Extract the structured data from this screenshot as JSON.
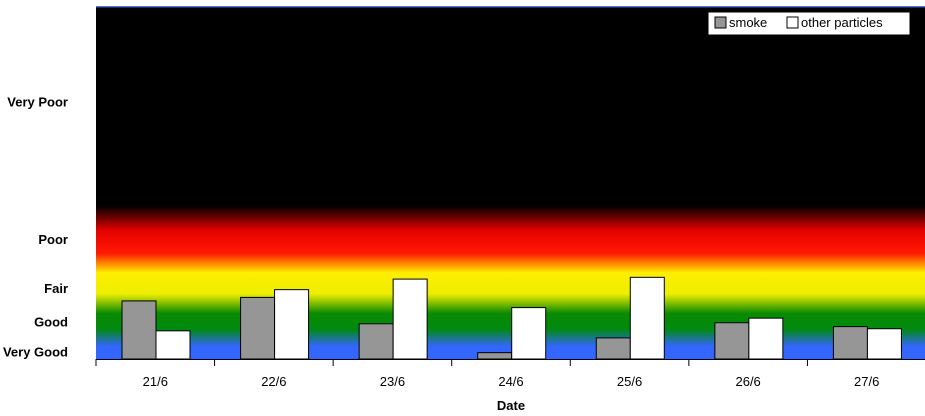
{
  "chart_data": {
    "type": "bar",
    "xlabel": "Date",
    "categories": [
      "21/6",
      "22/6",
      "23/6",
      "24/6",
      "25/6",
      "26/6",
      "27/6"
    ],
    "y_levels": [
      {
        "label": "Very Poor",
        "value": 7.3
      },
      {
        "label": "Poor",
        "value": 3.4
      },
      {
        "label": "Fair",
        "value": 2.0
      },
      {
        "label": "Good",
        "value": 1.05
      },
      {
        "label": "Very Good",
        "value": 0.2
      }
    ],
    "ylim": [
      0,
      10
    ],
    "series": [
      {
        "name": "smoke",
        "color": "#969696",
        "values": [
          1.65,
          1.75,
          1.0,
          0.18,
          0.6,
          1.03,
          0.92
        ]
      },
      {
        "name": "other particles",
        "color": "#ffffff",
        "values": [
          0.8,
          1.97,
          2.27,
          1.46,
          2.32,
          1.16,
          0.86
        ]
      }
    ],
    "background_bands": [
      "#000000",
      "#ff0000",
      "#ffff00",
      "#008000",
      "#3366ff"
    ],
    "legend_position": "top-right",
    "grid": false
  }
}
